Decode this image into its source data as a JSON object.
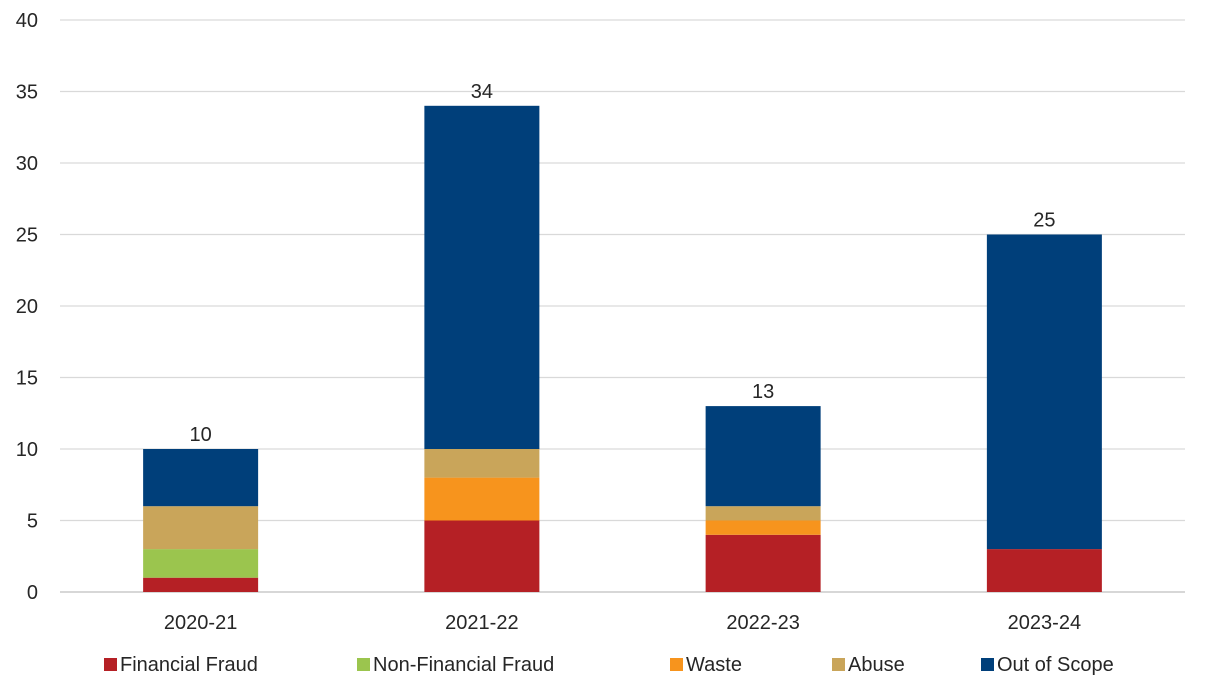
{
  "chart_data": {
    "type": "bar",
    "stacked": true,
    "categories": [
      "2020-21",
      "2021-22",
      "2022-23",
      "2023-24"
    ],
    "series": [
      {
        "name": "Financial Fraud",
        "color": "#b52025",
        "values": [
          1,
          5,
          4,
          3
        ]
      },
      {
        "name": "Non-Financial Fraud",
        "color": "#9bc54e",
        "values": [
          2,
          0,
          0,
          0
        ]
      },
      {
        "name": "Waste",
        "color": "#f7941d",
        "values": [
          0,
          3,
          1,
          0
        ]
      },
      {
        "name": "Abuse",
        "color": "#c9a55a",
        "values": [
          3,
          2,
          1,
          0
        ]
      },
      {
        "name": "Out of Scope",
        "color": "#003f7a",
        "values": [
          4,
          24,
          7,
          22
        ]
      }
    ],
    "totals": [
      "10",
      "34",
      "13",
      "25"
    ],
    "yticks": [
      "0",
      "5",
      "10",
      "15",
      "20",
      "25",
      "30",
      "35",
      "40"
    ],
    "ylim": [
      0,
      40
    ],
    "grid": true,
    "legend_position": "bottom",
    "title": "",
    "xlabel": "",
    "ylabel": ""
  }
}
